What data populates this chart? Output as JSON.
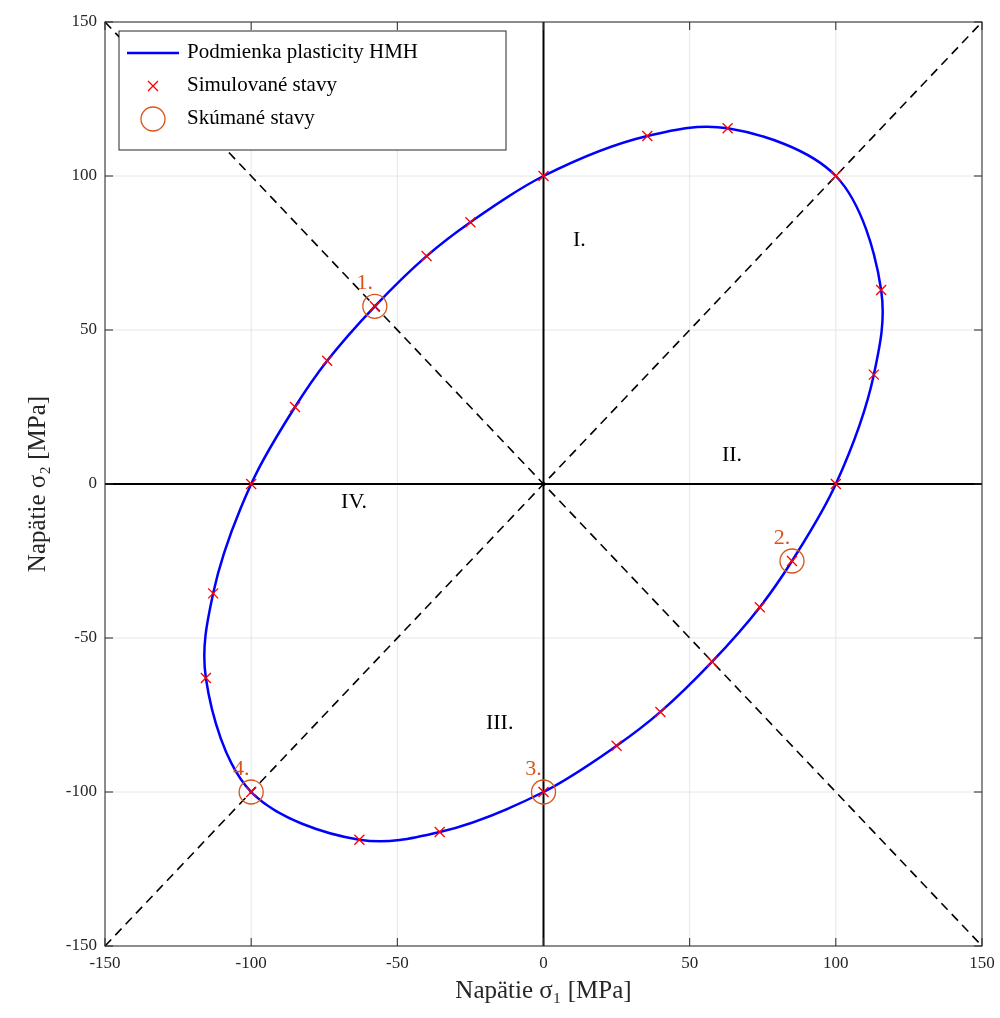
{
  "chart_data": {
    "type": "line",
    "xlabel": "Napätie σ₁ [MPa]",
    "ylabel": "Napätie σ₂ [MPa]",
    "xlim": [
      -150,
      150
    ],
    "ylim": [
      -150,
      150
    ],
    "xticks": [
      -150,
      -100,
      -50,
      0,
      50,
      100,
      150
    ],
    "yticks": [
      -150,
      -100,
      -50,
      0,
      50,
      100,
      150
    ],
    "grid": true,
    "legend": "top left",
    "series": [
      {
        "type": "line",
        "x": [
          0,
          0
        ],
        "values": [
          -150,
          150
        ],
        "color": "#000000",
        "line_style": "solid",
        "marker": "none"
      },
      {
        "type": "line",
        "x": [
          -150,
          150
        ],
        "values": [
          0,
          0
        ],
        "color": "#000000",
        "line_style": "solid",
        "marker": "none"
      },
      {
        "x": [
          -150,
          150
        ],
        "values": [
          -150,
          150
        ],
        "color": "#000000",
        "line_style": "dashed",
        "marker": "none"
      },
      {
        "x": [
          -150,
          150
        ],
        "values": [
          150,
          -150
        ],
        "color": "#000000",
        "line_style": "dashed",
        "marker": "none"
      },
      {
        "type": "line",
        "name": "Podmienka plasticity HMH",
        "color": "#0000ff",
        "marker": "none",
        "line_style": "solid"
      },
      {
        "name": "Simulované stavy",
        "type": "scatter",
        "color": "#ff0000",
        "marker": "cross",
        "x": [
          0,
          35.5,
          63,
          100,
          115.5,
          113,
          100,
          85,
          74,
          57.7,
          40,
          25,
          0,
          -35.5,
          -63,
          -100,
          -115.5,
          -113,
          -100,
          -85,
          -74,
          -57.7,
          -40,
          -25
        ],
        "values": [
          100,
          113,
          115.5,
          100,
          63,
          35.5,
          0,
          -25,
          -40,
          -57.7,
          -74,
          -85,
          -100,
          -113,
          -115.5,
          -100,
          -63,
          -35.5,
          0,
          25,
          40,
          57.7,
          74,
          85
        ]
      },
      {
        "name": "Skúmané stavy",
        "type": "scatter",
        "color": "#d95319",
        "marker": "circle",
        "x": [
          -57.7,
          85,
          0,
          -100
        ],
        "values": [
          57.7,
          -25,
          -100,
          -100
        ]
      }
    ],
    "annotations": [
      {
        "text": "1.",
        "x": -57.7,
        "y": 57.7
      },
      {
        "text": "2.",
        "x": 85,
        "y": -25
      },
      {
        "text": "3.",
        "x": 0,
        "y": -100
      },
      {
        "text": "4.",
        "x": -100,
        "y": -100
      },
      "I.",
      "II.",
      "III.",
      "IV."
    ]
  }
}
